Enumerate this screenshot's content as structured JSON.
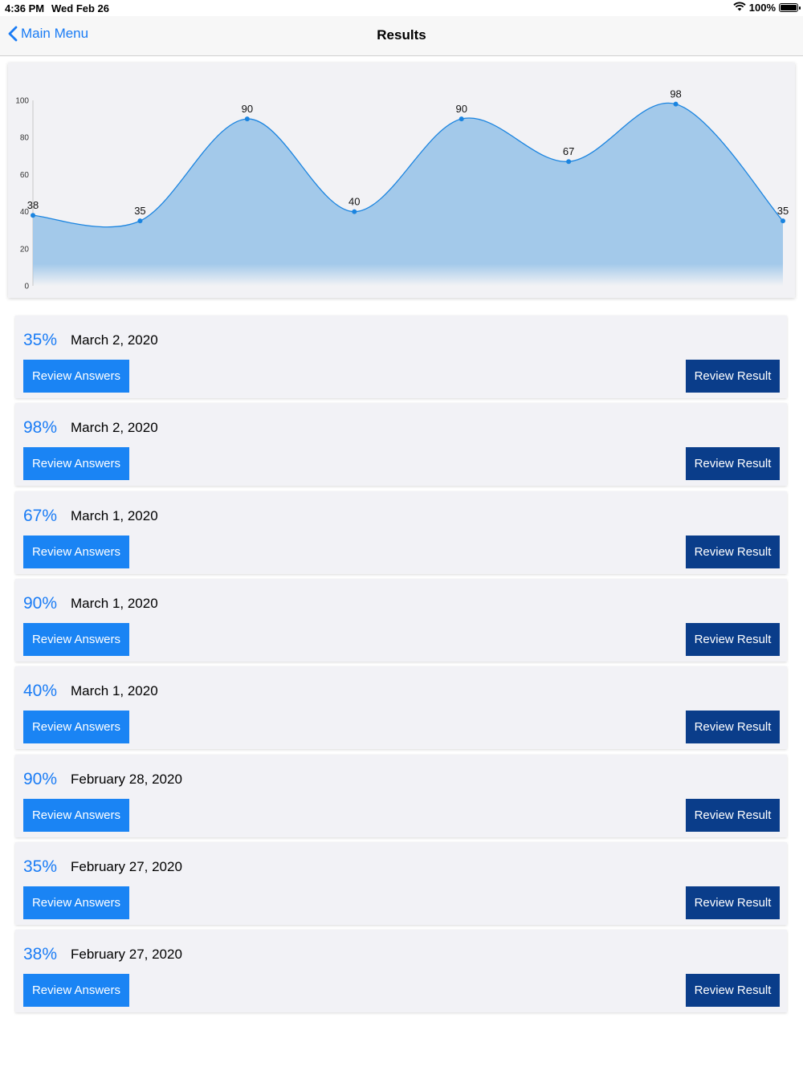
{
  "status_bar": {
    "time": "4:36 PM",
    "date": "Wed Feb 26",
    "battery": "100%",
    "wifi_icon": "wifi-icon",
    "battery_icon": "battery-icon"
  },
  "nav": {
    "back_label": "Main Menu",
    "back_icon": "chevron-left-icon",
    "title": "Results"
  },
  "colors": {
    "accent": "#1a7cf5",
    "primary_button": "#1a84f4",
    "secondary_button": "#0a3d8a",
    "chart_line": "#1a84e0",
    "chart_fill": "#a3c9ea"
  },
  "chart_data": {
    "type": "area",
    "x": [
      1,
      2,
      3,
      4,
      5,
      6,
      7,
      8
    ],
    "values": [
      38,
      35,
      90,
      40,
      90,
      67,
      98,
      35
    ],
    "data_labels": [
      "38",
      "35",
      "90",
      "40",
      "90",
      "67",
      "98",
      "35"
    ],
    "y_ticks": [
      "0",
      "20",
      "40",
      "60",
      "80",
      "100"
    ],
    "ylim": [
      0,
      100
    ],
    "smooth": true,
    "grid": false,
    "legend": "none"
  },
  "buttons": {
    "review_answers": "Review Answers",
    "review_result": "Review Result"
  },
  "results": [
    {
      "percent": "35%",
      "date": "March 2, 2020"
    },
    {
      "percent": "98%",
      "date": "March 2, 2020"
    },
    {
      "percent": "67%",
      "date": "March 1, 2020"
    },
    {
      "percent": "90%",
      "date": "March 1, 2020"
    },
    {
      "percent": "40%",
      "date": "March 1, 2020"
    },
    {
      "percent": "90%",
      "date": "February 28, 2020"
    },
    {
      "percent": "35%",
      "date": "February 27, 2020"
    },
    {
      "percent": "38%",
      "date": "February 27, 2020"
    }
  ]
}
